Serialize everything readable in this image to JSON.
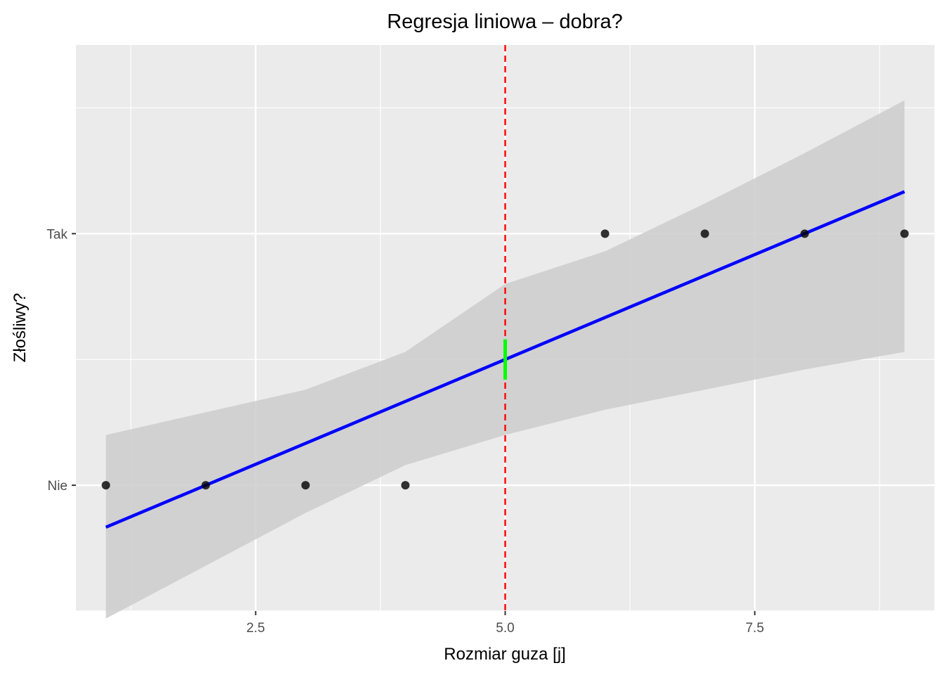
{
  "chart_data": {
    "type": "scatter",
    "title": "Regresja liniowa – dobra?",
    "xlabel": "Rozmiar guza [j]",
    "ylabel": "Złośliwy?",
    "xlim": [
      0.7,
      9.3
    ],
    "ylim": [
      -0.5,
      1.75
    ],
    "x_ticks": [
      {
        "value": 2.5,
        "label": "2.5"
      },
      {
        "value": 5.0,
        "label": "5.0"
      },
      {
        "value": 7.5,
        "label": "7.5"
      }
    ],
    "x_minor_ticks": [
      1.25,
      3.75,
      6.25,
      8.75
    ],
    "y_ticks": [
      {
        "value": 0,
        "label": "Nie"
      },
      {
        "value": 1,
        "label": "Tak"
      }
    ],
    "y_minor_ticks": [
      -0.5,
      0.5,
      1.5
    ],
    "grid": true,
    "points": [
      {
        "x": 1,
        "y": 0
      },
      {
        "x": 2,
        "y": 0
      },
      {
        "x": 3,
        "y": 0
      },
      {
        "x": 4,
        "y": 0
      },
      {
        "x": 6,
        "y": 1
      },
      {
        "x": 7,
        "y": 1
      },
      {
        "x": 8,
        "y": 1
      },
      {
        "x": 9,
        "y": 1
      }
    ],
    "regression_line": {
      "x": [
        1,
        9
      ],
      "y": [
        -0.167,
        1.167
      ]
    },
    "confidence_band": {
      "x": [
        1,
        2,
        3,
        4,
        5,
        6,
        7,
        8,
        9
      ],
      "lower": [
        -0.53,
        -0.32,
        -0.11,
        0.08,
        0.2,
        0.3,
        0.38,
        0.46,
        0.53
      ],
      "upper": [
        0.2,
        0.29,
        0.38,
        0.53,
        0.8,
        0.93,
        1.12,
        1.32,
        1.53
      ]
    },
    "threshold_line": {
      "x": 5,
      "color": "#ff0000",
      "style": "dashed"
    },
    "highlight_segment": {
      "x": 5,
      "y": [
        0.42,
        0.58
      ],
      "color": "#00ff00"
    },
    "colors": {
      "panel": "#ebebeb",
      "grid": "#ffffff",
      "band": "#cccccc",
      "line": "#0000ff",
      "points": "#000000"
    }
  }
}
